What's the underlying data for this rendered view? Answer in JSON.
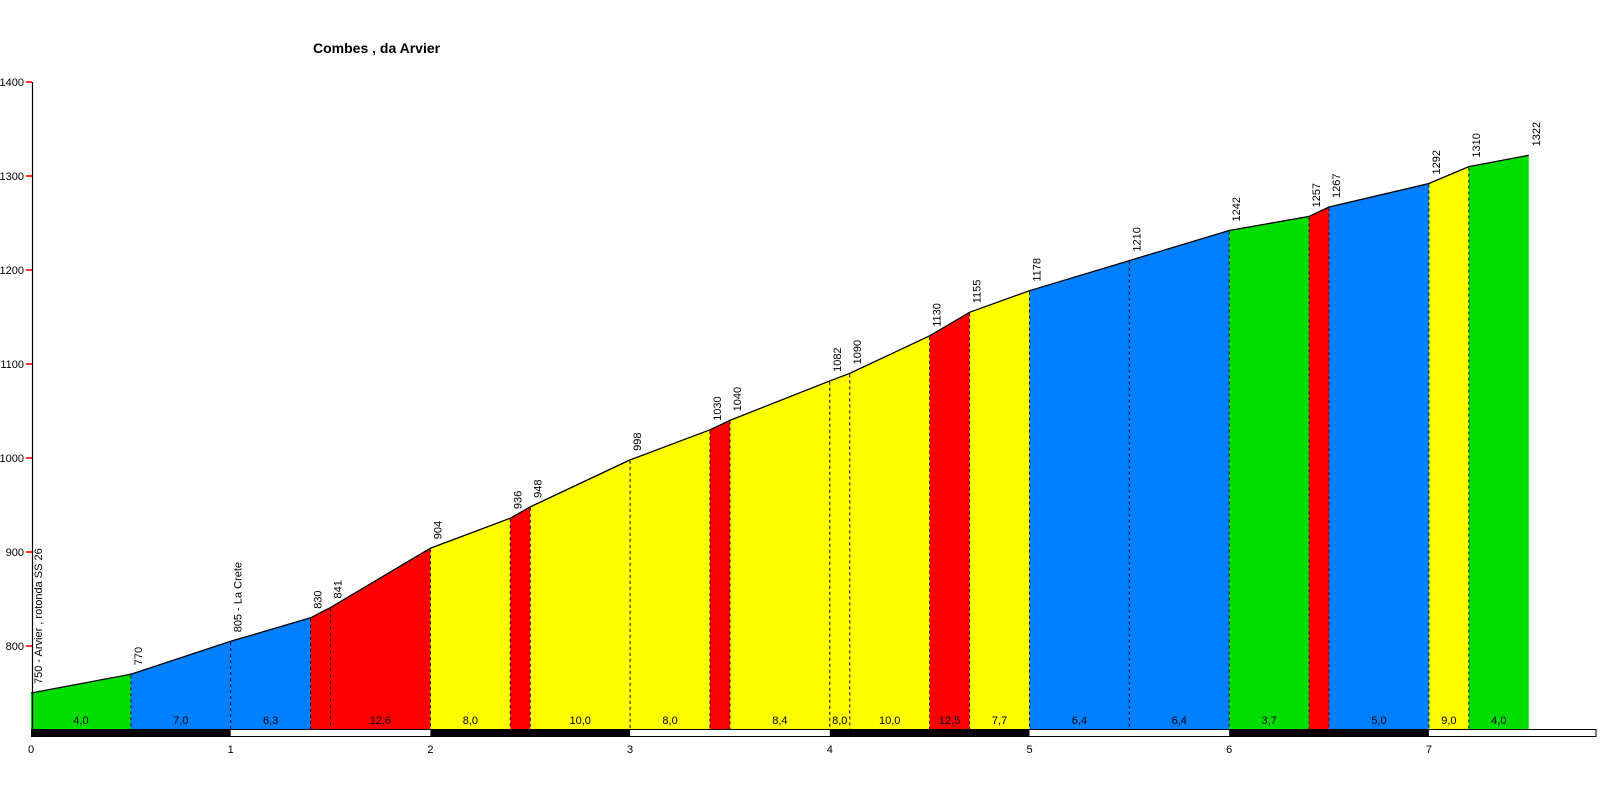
{
  "chart_data": {
    "type": "area",
    "title": "Combes , da Arvier",
    "xlabel": "",
    "ylabel": "",
    "x_axis_ticks": [
      0,
      1,
      2,
      3,
      4,
      5,
      6,
      7
    ],
    "y_axis_ticks": [
      800,
      900,
      1000,
      1100,
      1200,
      1300,
      1400
    ],
    "ylim": [
      710,
      1400
    ],
    "xlim": [
      0,
      7.85
    ],
    "grid": false,
    "legend": false,
    "colors": {
      "green": "#00dd00",
      "blue": "#0080ff",
      "yellow": "#ffff00",
      "red": "#ff0000",
      "axis_tick": "#ff0000",
      "line": "#000000",
      "bar_dark": "#000000",
      "bar_light": "#ffffff"
    },
    "points": [
      {
        "km": 0.0,
        "ele": 750,
        "label": "750 - Arvier , rotonda SS 26"
      },
      {
        "km": 0.5,
        "ele": 770,
        "label": "770"
      },
      {
        "km": 1.0,
        "ele": 805,
        "label": "805 - La Crete"
      },
      {
        "km": 1.4,
        "ele": 830,
        "label": "830"
      },
      {
        "km": 1.5,
        "ele": 841,
        "label": "841"
      },
      {
        "km": 2.0,
        "ele": 904,
        "label": "904"
      },
      {
        "km": 2.4,
        "ele": 936,
        "label": "936"
      },
      {
        "km": 2.5,
        "ele": 948,
        "label": "948"
      },
      {
        "km": 3.0,
        "ele": 998,
        "label": "998"
      },
      {
        "km": 3.4,
        "ele": 1030,
        "label": "1030"
      },
      {
        "km": 3.5,
        "ele": 1040,
        "label": "1040"
      },
      {
        "km": 4.0,
        "ele": 1082,
        "label": "1082"
      },
      {
        "km": 4.1,
        "ele": 1090,
        "label": "1090"
      },
      {
        "km": 4.5,
        "ele": 1130,
        "label": "1130"
      },
      {
        "km": 4.7,
        "ele": 1155,
        "label": "1155"
      },
      {
        "km": 5.0,
        "ele": 1178,
        "label": "1178"
      },
      {
        "km": 5.5,
        "ele": 1210,
        "label": "1210"
      },
      {
        "km": 6.0,
        "ele": 1242,
        "label": "1242"
      },
      {
        "km": 6.4,
        "ele": 1257,
        "label": "1257"
      },
      {
        "km": 6.5,
        "ele": 1267,
        "label": "1267"
      },
      {
        "km": 7.0,
        "ele": 1292,
        "label": "1292"
      },
      {
        "km": 7.2,
        "ele": 1310,
        "label": "1310"
      },
      {
        "km": 7.5,
        "ele": 1322,
        "label": "1322"
      }
    ],
    "segments": [
      {
        "from": 0.0,
        "to": 0.5,
        "grade": "4,0",
        "color": "green"
      },
      {
        "from": 0.5,
        "to": 1.0,
        "grade": "7,0",
        "color": "blue"
      },
      {
        "from": 1.0,
        "to": 1.4,
        "grade": "6,3",
        "color": "blue"
      },
      {
        "from": 1.4,
        "to": 1.5,
        "grade": "",
        "color": "red"
      },
      {
        "from": 1.5,
        "to": 2.0,
        "grade": "12,6",
        "color": "red"
      },
      {
        "from": 2.0,
        "to": 2.4,
        "grade": "8,0",
        "color": "yellow"
      },
      {
        "from": 2.4,
        "to": 2.5,
        "grade": "",
        "color": "red"
      },
      {
        "from": 2.5,
        "to": 3.0,
        "grade": "10,0",
        "color": "yellow"
      },
      {
        "from": 3.0,
        "to": 3.4,
        "grade": "8,0",
        "color": "yellow"
      },
      {
        "from": 3.4,
        "to": 3.5,
        "grade": "",
        "color": "red"
      },
      {
        "from": 3.5,
        "to": 4.0,
        "grade": "8,4",
        "color": "yellow"
      },
      {
        "from": 4.0,
        "to": 4.1,
        "grade": "8,0",
        "color": "yellow"
      },
      {
        "from": 4.1,
        "to": 4.5,
        "grade": "10,0",
        "color": "yellow"
      },
      {
        "from": 4.5,
        "to": 4.7,
        "grade": "12,5",
        "color": "red"
      },
      {
        "from": 4.7,
        "to": 5.0,
        "grade": "7,7",
        "color": "yellow"
      },
      {
        "from": 5.0,
        "to": 5.5,
        "grade": "6,4",
        "color": "blue"
      },
      {
        "from": 5.5,
        "to": 6.0,
        "grade": "6,4",
        "color": "blue"
      },
      {
        "from": 6.0,
        "to": 6.4,
        "grade": "3,7",
        "color": "green"
      },
      {
        "from": 6.4,
        "to": 6.5,
        "grade": "",
        "color": "red"
      },
      {
        "from": 6.5,
        "to": 7.0,
        "grade": "5,0",
        "color": "blue"
      },
      {
        "from": 7.0,
        "to": 7.2,
        "grade": "9,0",
        "color": "yellow"
      },
      {
        "from": 7.2,
        "to": 7.5,
        "grade": "4,0",
        "color": "green"
      }
    ],
    "km_bar": {
      "dark_blocks_km": [
        0,
        2,
        4,
        6
      ],
      "start_km": 0,
      "end_km": 7
    }
  }
}
